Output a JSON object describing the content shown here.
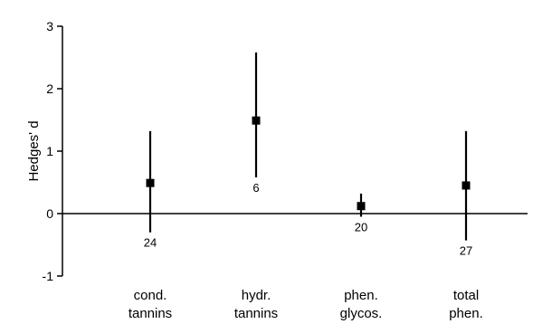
{
  "chart_data": {
    "type": "scatter",
    "ylabel": "Hedges' d",
    "ylim": [
      -1,
      3
    ],
    "yticks": [
      "-1",
      "0",
      "1",
      "2",
      "3"
    ],
    "grid": false,
    "categories": [
      [
        "cond.",
        "tannins"
      ],
      [
        "hydr.",
        "tannins"
      ],
      [
        "phen.",
        "glycos."
      ],
      [
        "total",
        "phen."
      ]
    ],
    "points": [
      {
        "mean": 0.49,
        "ci_low": -0.3,
        "ci_high": 1.32,
        "n": "24"
      },
      {
        "mean": 1.49,
        "ci_low": 0.58,
        "ci_high": 2.58,
        "n": "6"
      },
      {
        "mean": 0.12,
        "ci_low": -0.05,
        "ci_high": 0.32,
        "n": "20"
      },
      {
        "mean": 0.45,
        "ci_low": -0.43,
        "ci_high": 1.32,
        "n": "27"
      }
    ],
    "colors": {
      "ink": "#000000"
    }
  }
}
